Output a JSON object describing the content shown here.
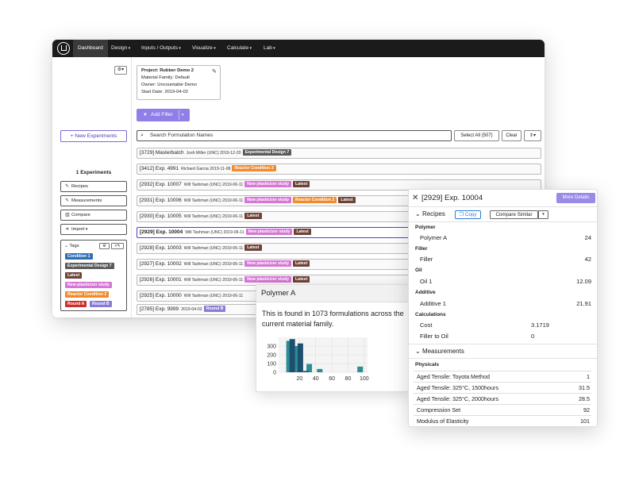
{
  "nav": {
    "items": [
      "Dashboard",
      "Design",
      "Inputs / Outputs",
      "Visualize",
      "Calculate",
      "Lab"
    ]
  },
  "sidebar": {
    "gear_label": "⚙▾",
    "new_experiment": "+ New Experiments",
    "experiment_count": "1 Experiments",
    "buttons": [
      "Recipes",
      "Measurements",
      "Compare",
      "Import"
    ],
    "tags_label": "Tags",
    "tags": [
      {
        "label": "Condition 1",
        "color": "#2f6fb5"
      },
      {
        "label": "Experimental Design 7",
        "color": "#5a5a5a"
      },
      {
        "label": "Latest",
        "color": "#6d4237"
      },
      {
        "label": "New plasticizer study",
        "color": "#d676d6"
      },
      {
        "label": "Reactor Condition 2",
        "color": "#f08a2c"
      },
      {
        "label": "Round A",
        "color": "#c9302c"
      },
      {
        "label": "Round B",
        "color": "#8a7ad8"
      }
    ]
  },
  "project": {
    "title": "Project: Rubber Demo 2",
    "family": "Material Family: Default",
    "owner": "Owner: Uncountable Demo",
    "start": "Start Date: 2019-04-02"
  },
  "filter": {
    "add_label": "Add Filter"
  },
  "search": {
    "placeholder": "Search Formulation Names",
    "select_all": "Select All (507)",
    "clear": "Clear"
  },
  "rows": [
    {
      "name": "[3729] Masterbatch",
      "meta": "Josh Miller (UNC) 2019-12-20",
      "tags": [
        {
          "label": "Experimental Design 7",
          "color": "#5a5a5a"
        }
      ]
    },
    {
      "name": "[3412] Exp. 4991",
      "meta": "Richard Garcia 2019-11-08",
      "tags": [
        {
          "label": "Reactor Condition 2",
          "color": "#f08a2c"
        }
      ]
    },
    {
      "name": "[2932] Exp. 10007",
      "meta": "Will Tashman (UNC) 2019-06-11",
      "tags": [
        {
          "label": "New plasticizer study",
          "color": "#d676d6"
        },
        {
          "label": "Latest",
          "color": "#6d4237"
        }
      ]
    },
    {
      "name": "[2931] Exp. 10006",
      "meta": "Will Tashman (UNC) 2019-06-11",
      "tags": [
        {
          "label": "New plasticizer study",
          "color": "#d676d6"
        },
        {
          "label": "Reactor Condition 2",
          "color": "#f08a2c"
        },
        {
          "label": "Latest",
          "color": "#6d4237"
        }
      ]
    },
    {
      "name": "[2930] Exp. 10005",
      "meta": "Will Tashman (UNC) 2019-06-11",
      "tags": [
        {
          "label": "Latest",
          "color": "#6d4237"
        }
      ]
    },
    {
      "name": "[2929] Exp. 10004",
      "meta": "Will Tashman (UNC) 2019-06-11",
      "tags": [
        {
          "label": "New plasticizer study",
          "color": "#d676d6"
        },
        {
          "label": "Latest",
          "color": "#6d4237"
        }
      ]
    },
    {
      "name": "[2928] Exp. 10003",
      "meta": "Will Tashman (UNC) 2019-06-11",
      "tags": [
        {
          "label": "Latest",
          "color": "#6d4237"
        }
      ]
    },
    {
      "name": "[2927] Exp. 10002",
      "meta": "Will Tashman (UNC) 2019-06-11",
      "tags": [
        {
          "label": "New plasticizer study",
          "color": "#d676d6"
        },
        {
          "label": "Latest",
          "color": "#6d4237"
        }
      ]
    },
    {
      "name": "[2926] Exp. 10001",
      "meta": "Will Tashman (UNC) 2019-06-11",
      "tags": [
        {
          "label": "New plasticizer study",
          "color": "#d676d6"
        },
        {
          "label": "Latest",
          "color": "#6d4237"
        }
      ]
    },
    {
      "name": "[2925] Exp. 10000",
      "meta": "Will Tashman (UNC) 2019-06-11",
      "tags": []
    },
    {
      "name": "[2785] Exp. 9999",
      "meta": "2019-04-02",
      "tags": [
        {
          "label": "Round B",
          "color": "#8a7ad8"
        }
      ]
    }
  ],
  "popover": {
    "title": "Polymer A",
    "text": "This is found in 1073 formulations across the current material family."
  },
  "chart_data": {
    "type": "bar",
    "x_ticks": [
      20,
      40,
      60,
      80,
      100
    ],
    "y_ticks": [
      300,
      200,
      100,
      0
    ],
    "ylim": [
      0,
      400
    ],
    "series": [
      {
        "values": [
          {
            "x": 7,
            "y": 360
          },
          {
            "x": 16,
            "y": 300
          },
          {
            "x": 32,
            "y": 95
          },
          {
            "x": 45,
            "y": 38
          },
          {
            "x": 95,
            "y": 65
          }
        ],
        "color": "#2b8e94"
      },
      {
        "values": [
          {
            "x": 11,
            "y": 380
          },
          {
            "x": 21,
            "y": 330
          },
          {
            "x": 28,
            "y": 15
          }
        ],
        "color": "#1f4f6e"
      }
    ]
  },
  "detail": {
    "title": "[2929] Exp. 10004",
    "more_details": "More Details",
    "recipes_label": "Recipes",
    "copy": "Copy",
    "compare_similar": "Compare Similar",
    "recipe_groups": [
      {
        "category": "Polymer",
        "items": [
          {
            "name": "Polymer A",
            "value": "24"
          }
        ]
      },
      {
        "category": "Filler",
        "items": [
          {
            "name": "Filler",
            "value": "42"
          }
        ]
      },
      {
        "category": "Oil",
        "items": [
          {
            "name": "Oil 1",
            "value": "12.09"
          }
        ]
      },
      {
        "category": "Additive",
        "items": [
          {
            "name": "Additive 1",
            "value": "21.91"
          }
        ]
      }
    ],
    "calculations_label": "Calculations",
    "calculations": [
      {
        "name": "Cost",
        "value": "3.1719"
      },
      {
        "name": "Filler to Oil",
        "value": "0"
      }
    ],
    "measurements_label": "Measurements",
    "physicals_label": "Physicals",
    "measurements": [
      {
        "name": "Aged Tensile: Toyota Method",
        "value": "1"
      },
      {
        "name": "Aged Tensile: 325°C, 1500hours",
        "value": "31.5"
      },
      {
        "name": "Aged Tensile: 325°C, 2000hours",
        "value": "28.5"
      },
      {
        "name": "Compression Set",
        "value": "92"
      },
      {
        "name": "Modulus of Elasticity",
        "value": "101"
      }
    ]
  }
}
